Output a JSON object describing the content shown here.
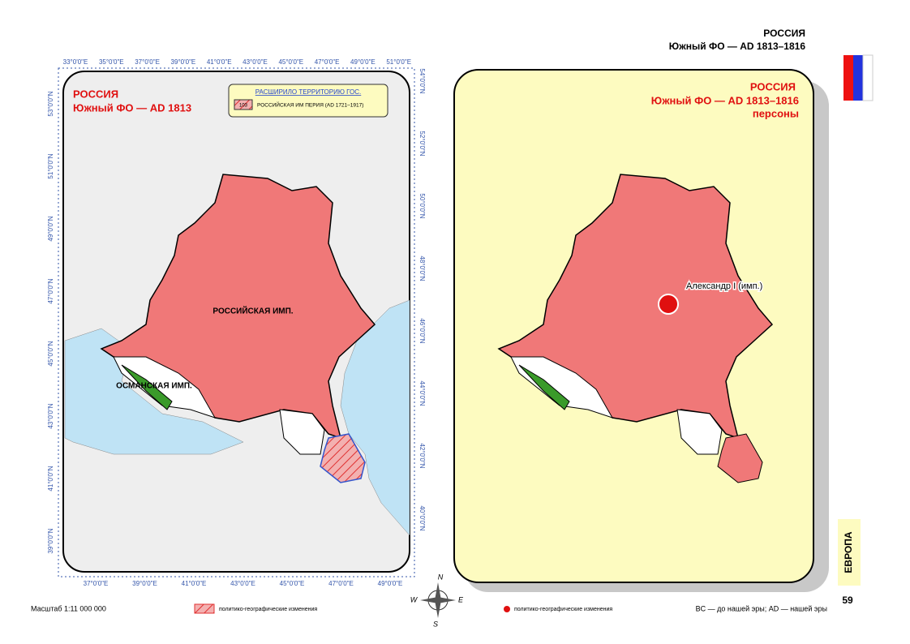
{
  "header": {
    "title": "РОССИЯ",
    "subtitle": "Южный ФО — AD 1813–1816"
  },
  "left_map": {
    "title": "РОССИЯ",
    "subtitle": "Южный ФО — AD 1813",
    "legend": {
      "title": "РАСШИРИЛО ТЕРРИТОРИЮ ГОС.",
      "code": "103",
      "label": "РОССИЙСКАЯ ИМ ПЕРИЯ (AD 1721–1917)"
    },
    "labels": [
      "РОССИЙСКАЯ ИМП.",
      "ОСМАНСКАЯ ИМП."
    ],
    "top_ticks": [
      "33°0'0\"E",
      "35°0'0\"E",
      "37°0'0\"E",
      "39°0'0\"E",
      "41°0'0\"E",
      "43°0'0\"E",
      "45°0'0\"E",
      "47°0'0\"E",
      "49°0'0\"E",
      "51°0'0\"E"
    ],
    "bottom_ticks": [
      "37°0'0\"E",
      "39°0'0\"E",
      "41°0'0\"E",
      "43°0'0\"E",
      "45°0'0\"E",
      "47°0'0\"E",
      "49°0'0\"E"
    ],
    "left_ticks": [
      "53°0'0\"N",
      "51°0'0\"N",
      "49°0'0\"N",
      "47°0'0\"N",
      "45°0'0\"N",
      "43°0'0\"N",
      "41°0'0\"N",
      "39°0'0\"N"
    ],
    "right_ticks": [
      "54°0'0\"N",
      "52°0'0\"N",
      "50°0'0\"N",
      "48°0'0\"N",
      "46°0'0\"N",
      "44°0'0\"N",
      "42°0'0\"N",
      "40°0'0\"N"
    ]
  },
  "right_map": {
    "title": "РОССИЯ",
    "subtitle": "Южный ФО — AD 1813–1816",
    "caption": "персоны",
    "person": "Александр I (имп.)"
  },
  "compass": [
    "N",
    "W",
    "E",
    "S"
  ],
  "footer": {
    "scale": "Масштаб 1:11 000 000",
    "legend_hatch": "политико-географические изменения",
    "legend_dot": "политико-географические изменения",
    "note": "BC — до нашей эры; AD — нашей эры",
    "section": "ЕВРОПА",
    "page": "59"
  }
}
